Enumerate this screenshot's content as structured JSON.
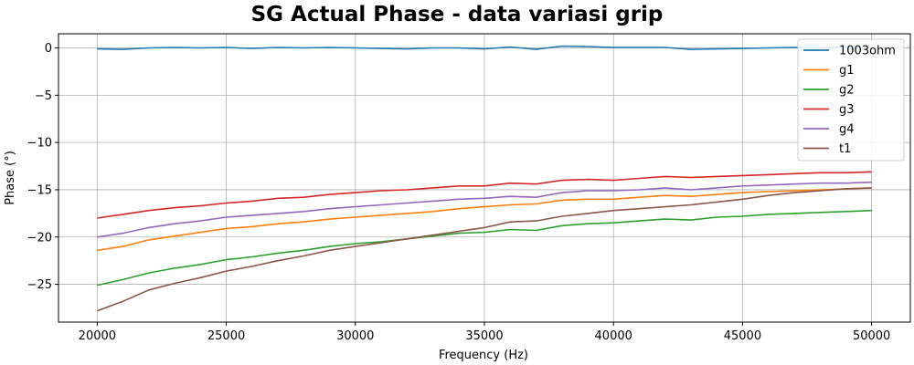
{
  "chart_data": {
    "type": "line",
    "title": "SG Actual Phase - data variasi grip",
    "xlabel": "Frequency (Hz)",
    "ylabel": "Phase (°)",
    "xlim": [
      18500,
      51500
    ],
    "ylim": [
      -29,
      1.5
    ],
    "xticks": [
      20000,
      25000,
      30000,
      35000,
      40000,
      45000,
      50000
    ],
    "yticks": [
      0,
      -5,
      -10,
      -15,
      -20,
      -25
    ],
    "ytick_labels": [
      "0",
      "−5",
      "−10",
      "−15",
      "−20",
      "−25"
    ],
    "grid": true,
    "legend_position": "top-right",
    "x": [
      20000,
      21000,
      22000,
      23000,
      24000,
      25000,
      26000,
      27000,
      28000,
      29000,
      30000,
      31000,
      32000,
      33000,
      34000,
      35000,
      36000,
      37000,
      38000,
      39000,
      40000,
      41000,
      42000,
      43000,
      44000,
      45000,
      46000,
      47000,
      48000,
      49000,
      50000
    ],
    "series": [
      {
        "name": "1003ohm",
        "color": "#1f77b4",
        "values": [
          -0.1,
          -0.15,
          0.0,
          0.05,
          0.0,
          0.05,
          -0.05,
          0.05,
          0.0,
          0.05,
          0.0,
          -0.05,
          -0.1,
          0.0,
          0.0,
          -0.1,
          0.1,
          -0.15,
          0.2,
          0.15,
          0.05,
          0.05,
          0.05,
          -0.15,
          -0.1,
          -0.05,
          0.0,
          0.05,
          0.0,
          0.1,
          0.05
        ]
      },
      {
        "name": "g1",
        "color": "#ff7f0e",
        "values": [
          -21.4,
          -21.0,
          -20.3,
          -19.9,
          -19.5,
          -19.1,
          -18.9,
          -18.6,
          -18.4,
          -18.1,
          -17.9,
          -17.7,
          -17.5,
          -17.3,
          -17.0,
          -16.8,
          -16.6,
          -16.5,
          -16.1,
          -16.0,
          -16.0,
          -15.8,
          -15.6,
          -15.7,
          -15.5,
          -15.3,
          -15.2,
          -15.1,
          -15.0,
          -14.9,
          -14.8
        ]
      },
      {
        "name": "g2",
        "color": "#2ca02c",
        "values": [
          -25.1,
          -24.5,
          -23.8,
          -23.3,
          -22.9,
          -22.4,
          -22.1,
          -21.7,
          -21.4,
          -21.0,
          -20.7,
          -20.5,
          -20.2,
          -19.9,
          -19.6,
          -19.5,
          -19.2,
          -19.3,
          -18.8,
          -18.6,
          -18.5,
          -18.3,
          -18.1,
          -18.2,
          -17.9,
          -17.8,
          -17.6,
          -17.5,
          -17.4,
          -17.3,
          -17.2
        ]
      },
      {
        "name": "g3",
        "color": "#d62728",
        "values": [
          -18.0,
          -17.6,
          -17.2,
          -16.9,
          -16.7,
          -16.4,
          -16.2,
          -15.9,
          -15.8,
          -15.5,
          -15.3,
          -15.1,
          -15.0,
          -14.8,
          -14.6,
          -14.6,
          -14.3,
          -14.4,
          -14.0,
          -13.9,
          -14.0,
          -13.8,
          -13.6,
          -13.7,
          -13.6,
          -13.5,
          -13.4,
          -13.3,
          -13.2,
          -13.2,
          -13.1
        ]
      },
      {
        "name": "g4",
        "color": "#9467bd",
        "values": [
          -20.0,
          -19.6,
          -19.0,
          -18.6,
          -18.3,
          -17.9,
          -17.7,
          -17.5,
          -17.3,
          -17.0,
          -16.8,
          -16.6,
          -16.4,
          -16.2,
          -16.0,
          -15.9,
          -15.7,
          -15.8,
          -15.3,
          -15.1,
          -15.1,
          -15.0,
          -14.8,
          -15.0,
          -14.8,
          -14.6,
          -14.5,
          -14.4,
          -14.3,
          -14.3,
          -14.2
        ]
      },
      {
        "name": "t1",
        "color": "#8c564b",
        "values": [
          -27.8,
          -26.8,
          -25.6,
          -24.9,
          -24.3,
          -23.6,
          -23.1,
          -22.5,
          -22.0,
          -21.4,
          -21.0,
          -20.6,
          -20.2,
          -19.8,
          -19.4,
          -19.0,
          -18.4,
          -18.3,
          -17.8,
          -17.5,
          -17.2,
          -17.0,
          -16.8,
          -16.6,
          -16.3,
          -16.0,
          -15.6,
          -15.3,
          -15.1,
          -14.9,
          -14.8
        ]
      }
    ]
  }
}
